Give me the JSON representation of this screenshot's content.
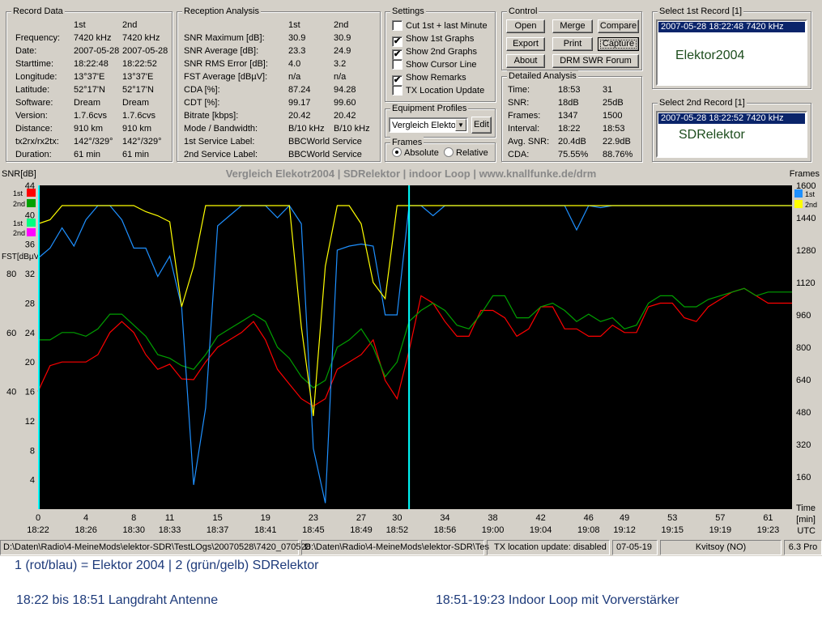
{
  "record_data": {
    "title": "Record Data",
    "col1": "1st",
    "col2": "2nd",
    "rows": [
      {
        "label": "Frequency:",
        "v1": "7420 kHz",
        "v2": "7420 kHz"
      },
      {
        "label": "Date:",
        "v1": "2007-05-28",
        "v2": "2007-05-28"
      },
      {
        "label": "Starttime:",
        "v1": "18:22:48",
        "v2": "18:22:52"
      },
      {
        "label": "Longitude:",
        "v1": "13°37'E",
        "v2": "13°37'E"
      },
      {
        "label": "Latitude:",
        "v1": "52°17'N",
        "v2": "52°17'N"
      },
      {
        "label": "Software:",
        "v1": "Dream",
        "v2": "Dream"
      },
      {
        "label": "Version:",
        "v1": "1.7.6cvs",
        "v2": "1.7.6cvs"
      },
      {
        "label": "Distance:",
        "v1": "910 km",
        "v2": "910 km"
      },
      {
        "label": "tx2rx/rx2tx:",
        "v1": "142°/329°",
        "v2": "142°/329°"
      },
      {
        "label": "Duration:",
        "v1": "61 min",
        "v2": "61 min"
      }
    ]
  },
  "reception": {
    "title": "Reception Analysis",
    "col1": "1st",
    "col2": "2nd",
    "rows": [
      {
        "label": "SNR Maximum [dB]:",
        "v1": "30.9",
        "v2": "30.9"
      },
      {
        "label": "SNR Average [dB]:",
        "v1": "23.3",
        "v2": "24.9"
      },
      {
        "label": "SNR RMS Error [dB]:",
        "v1": "4.0",
        "v2": "3.2"
      },
      {
        "label": "FST Average [dBµV]:",
        "v1": "n/a",
        "v2": "n/a"
      },
      {
        "label": "CDA [%]:",
        "v1": "87.24",
        "v2": "94.28"
      },
      {
        "label": "CDT [%]:",
        "v1": "99.17",
        "v2": "99.60"
      },
      {
        "label": "Bitrate [kbps]:",
        "v1": "20.42",
        "v2": "20.42"
      },
      {
        "label": "Mode / Bandwidth:",
        "v1": "B/10 kHz",
        "v2": "B/10 kHz"
      },
      {
        "label": "1st Service Label:",
        "v1": "BBCWorld Service",
        "v2": ""
      },
      {
        "label": "2nd Service Label:",
        "v1": "BBCWorld Service",
        "v2": ""
      }
    ]
  },
  "settings": {
    "title": "Settings",
    "items": [
      {
        "label": "Cut 1st + last Minute",
        "checked": false,
        "mark": ""
      },
      {
        "label": "Show 1st Graphs",
        "checked": true,
        "mark": "✔"
      },
      {
        "label": "Show 2nd Graphs",
        "checked": true,
        "mark": "✔"
      },
      {
        "label": "Show Cursor Line",
        "checked": false,
        "mark": ""
      },
      {
        "label": "Show Remarks",
        "checked": true,
        "mark": "✔"
      },
      {
        "label": "TX Location Update",
        "checked": false,
        "mark": ""
      }
    ]
  },
  "equipment": {
    "title": "Equipment Profiles",
    "selected": "Vergleich Elekto",
    "edit": "Edit"
  },
  "frames": {
    "title": "Frames",
    "absolute": "Absolute",
    "relative": "Relative",
    "selected": "absolute"
  },
  "control": {
    "title": "Control",
    "buttons": [
      "Open",
      "Merge",
      "Compare",
      "Export",
      "Print",
      "Capture",
      "About",
      "DRM SWR Forum"
    ]
  },
  "detailed": {
    "title": "Detailed Analysis",
    "rows": [
      {
        "label": "Time:",
        "v1": "18:53",
        "v2": "31"
      },
      {
        "label": "SNR:",
        "v1": "18dB",
        "v2": "25dB"
      },
      {
        "label": "Frames:",
        "v1": "1347",
        "v2": "1500"
      },
      {
        "label": "Interval:",
        "v1": "18:22",
        "v2": "18:53"
      },
      {
        "label": "Avg. SNR:",
        "v1": "20.4dB",
        "v2": "22.9dB"
      },
      {
        "label": "CDA:",
        "v1": "75.55%",
        "v2": "88.76%"
      }
    ]
  },
  "select1": {
    "title": "Select 1st Record [1]",
    "item": "2007-05-28 18:22:48 7420 kHz",
    "remark": "Elektor2004"
  },
  "select2": {
    "title": "Select 2nd Record [1]",
    "item": "2007-05-28 18:22:52 7420 kHz",
    "remark": "SDRelektor"
  },
  "chart_title": "Vergleich Elekotr2004 | SDRelektor | indoor Loop | www.knallfunke.de/drm",
  "chart_data": {
    "type": "line",
    "title": "Vergleich Elekotr2004 | SDRelektor | indoor Loop | www.knallfunke.de/drm",
    "left_axis_label": "SNR[dB]",
    "fst_label": "FST[dBµV]",
    "right_axis_label": "Frames",
    "x_unit": "[min]",
    "x_unit2": "UTC",
    "time_label": "Time",
    "xlim": [
      0,
      63
    ],
    "snr_ylim": [
      0,
      44
    ],
    "frames_ylim": [
      0,
      1600
    ],
    "snr_ticks": [
      4,
      8,
      12,
      16,
      20,
      24,
      28,
      32,
      36,
      40,
      44
    ],
    "fst_ticks": [
      {
        "v": 16,
        "l": "40"
      },
      {
        "v": 24,
        "l": "60"
      },
      {
        "v": 32,
        "l": "80"
      }
    ],
    "frames_ticks": [
      160,
      320,
      480,
      640,
      800,
      960,
      1120,
      1280,
      1440,
      1600
    ],
    "frames_top_label": "1600",
    "x_ticks": [
      {
        "m": 0,
        "t": "18:22"
      },
      {
        "m": 4,
        "t": "18:26"
      },
      {
        "m": 8,
        "t": "18:30"
      },
      {
        "m": 11,
        "t": "18:33"
      },
      {
        "m": 15,
        "t": "18:37"
      },
      {
        "m": 19,
        "t": "18:41"
      },
      {
        "m": 23,
        "t": "18:45"
      },
      {
        "m": 27,
        "t": "18:49"
      },
      {
        "m": 30,
        "t": "18:52"
      },
      {
        "m": 34,
        "t": "18:56"
      },
      {
        "m": 38,
        "t": "19:00"
      },
      {
        "m": 42,
        "t": "19:04"
      },
      {
        "m": 46,
        "t": "19:08"
      },
      {
        "m": 49,
        "t": "19:12"
      },
      {
        "m": 53,
        "t": "19:15"
      },
      {
        "m": 57,
        "t": "19:19"
      },
      {
        "m": 61,
        "t": "19:23"
      }
    ],
    "cursor_minute": 31,
    "left_legend": [
      {
        "label": "1st",
        "color": "#ff0000"
      },
      {
        "label": "2nd",
        "color": "#00a000"
      },
      {
        "label": "1st",
        "color": "#00ff80"
      },
      {
        "label": "2nd",
        "color": "#ff00ff"
      }
    ],
    "right_legend": [
      {
        "label": "1st",
        "color": "#1e90ff"
      },
      {
        "label": "2nd",
        "color": "#ffff00"
      }
    ],
    "series": [
      {
        "name": "SNR 1st",
        "axis": "snr",
        "color": "#ff0000",
        "x": [
          0,
          1,
          2,
          3,
          4,
          5,
          6,
          7,
          8,
          9,
          10,
          11,
          12,
          13,
          14,
          15,
          16,
          17,
          18,
          19,
          20,
          21,
          22,
          23,
          24,
          25,
          26,
          27,
          28,
          29,
          30,
          31,
          32,
          33,
          34,
          35,
          36,
          37,
          38,
          39,
          40,
          41,
          42,
          43,
          44,
          45,
          46,
          47,
          48,
          49,
          50,
          51,
          52,
          53,
          54,
          55,
          56,
          57,
          58,
          59,
          60,
          61,
          62,
          63
        ],
        "y": [
          16,
          19.5,
          20,
          20,
          20,
          21,
          24,
          25.5,
          24,
          21,
          19,
          19.7,
          17.7,
          17.6,
          20,
          22,
          23,
          24,
          25.5,
          23,
          19,
          17,
          15,
          14,
          15,
          19,
          20,
          21,
          23,
          17.5,
          15,
          21.5,
          29,
          28,
          25.5,
          23.5,
          23.5,
          27,
          27,
          26,
          23.5,
          24.5,
          27.5,
          27.5,
          24.5,
          24.5,
          23.5,
          23.5,
          25,
          24,
          24,
          27.5,
          28,
          28,
          26,
          25.5,
          27.5,
          28.5,
          29.5,
          30,
          29,
          28,
          28,
          28
        ]
      },
      {
        "name": "SNR 2nd",
        "axis": "snr",
        "color": "#00a000",
        "x": [
          0,
          1,
          2,
          3,
          4,
          5,
          6,
          7,
          8,
          9,
          10,
          11,
          12,
          13,
          14,
          15,
          16,
          17,
          18,
          19,
          20,
          21,
          22,
          23,
          24,
          25,
          26,
          27,
          28,
          29,
          30,
          31,
          32,
          33,
          34,
          35,
          36,
          37,
          38,
          39,
          40,
          41,
          42,
          43,
          44,
          45,
          46,
          47,
          48,
          49,
          50,
          51,
          52,
          53,
          54,
          55,
          56,
          57,
          58,
          59,
          60,
          61,
          62,
          63
        ],
        "y": [
          23,
          23,
          24,
          24,
          23.5,
          24.5,
          26.5,
          26.5,
          25,
          23.5,
          21,
          20.5,
          19.5,
          19,
          21,
          23.5,
          24.5,
          25.5,
          26.5,
          25.5,
          22,
          20.5,
          18,
          16.5,
          17.5,
          22,
          23,
          24.5,
          22,
          18,
          20,
          25.5,
          27,
          28,
          27,
          25,
          24.5,
          26.5,
          29,
          29,
          26,
          26,
          27.5,
          28,
          27,
          25.5,
          26.5,
          25.5,
          26,
          24.5,
          25,
          28,
          29,
          29,
          27.5,
          27.5,
          28.5,
          29,
          29.5,
          30,
          29,
          29.5,
          29.5,
          29.5
        ]
      },
      {
        "name": "Frames 1st",
        "axis": "frames",
        "color": "#1e90ff",
        "x": [
          0,
          1,
          2,
          3,
          4,
          5,
          6,
          7,
          8,
          9,
          10,
          11,
          12,
          13,
          14,
          15,
          16,
          17,
          18,
          19,
          20,
          21,
          22,
          23,
          24,
          25,
          26,
          27,
          28,
          29,
          30,
          31,
          32,
          33,
          34,
          35,
          36,
          37,
          38,
          39,
          40,
          41,
          42,
          43,
          44,
          45,
          46,
          47,
          48,
          49,
          50,
          51,
          52,
          53,
          54,
          55,
          56,
          57,
          58,
          59,
          60,
          61,
          62,
          63
        ],
        "y": [
          1240,
          1290,
          1390,
          1300,
          1430,
          1500,
          1500,
          1430,
          1290,
          1290,
          1150,
          1250,
          1000,
          120,
          500,
          1400,
          1450,
          1500,
          1500,
          1500,
          1440,
          1500,
          1410,
          300,
          30,
          1280,
          1300,
          1310,
          1300,
          960,
          960,
          1500,
          1500,
          1450,
          1500,
          1500,
          1500,
          1500,
          1500,
          1500,
          1500,
          1500,
          1500,
          1500,
          1500,
          1380,
          1500,
          1490,
          1500,
          1500,
          1500,
          1500,
          1500,
          1500,
          1500,
          1500,
          1500,
          1500,
          1500,
          1500,
          1500,
          1500,
          1500,
          1500
        ]
      },
      {
        "name": "Frames 2nd",
        "axis": "frames",
        "color": "#ffff00",
        "x": [
          0,
          1,
          2,
          3,
          4,
          5,
          6,
          7,
          8,
          9,
          10,
          11,
          12,
          13,
          14,
          15,
          16,
          17,
          18,
          19,
          20,
          21,
          22,
          23,
          24,
          25,
          26,
          27,
          28,
          29,
          30,
          31,
          32,
          33,
          34,
          35,
          36,
          37,
          38,
          39,
          40,
          41,
          42,
          43,
          44,
          45,
          46,
          47,
          48,
          49,
          50,
          51,
          52,
          53,
          54,
          55,
          56,
          57,
          58,
          59,
          60,
          61,
          62,
          63
        ],
        "y": [
          1410,
          1430,
          1500,
          1500,
          1500,
          1500,
          1500,
          1500,
          1500,
          1470,
          1450,
          1420,
          1000,
          1200,
          1500,
          1500,
          1500,
          1500,
          1500,
          1500,
          1500,
          1500,
          900,
          460,
          1200,
          1500,
          1500,
          1410,
          1120,
          1040,
          1500,
          1500,
          1500,
          1500,
          1500,
          1500,
          1500,
          1500,
          1500,
          1500,
          1500,
          1500,
          1500,
          1500,
          1500,
          1500,
          1500,
          1500,
          1500,
          1500,
          1500,
          1500,
          1500,
          1500,
          1500,
          1500,
          1500,
          1500,
          1500,
          1500,
          1500,
          1500,
          1500,
          1500
        ]
      }
    ]
  },
  "status": {
    "path1": "D:\\Daten\\Radio\\4-MeineMods\\elektor-SDR\\TestLOgs\\20070528\\7420_070528",
    "path2": "D:\\Daten\\Radio\\4-MeineMods\\elektor-SDR\\Tes",
    "tx": "TX location update: disabled",
    "date": "07-05-19",
    "station": "Kvitsoy (NO)",
    "version": "6.3 Pro"
  },
  "notes": {
    "line1": "1 (rot/blau) = Elektor 2004  | 2 (grün/gelb) SDRelektor",
    "line2": "18:22 bis 18:51 Langdraht Antenne",
    "line3": "18:51-19:23 Indoor Loop mit Vorverstärker"
  }
}
